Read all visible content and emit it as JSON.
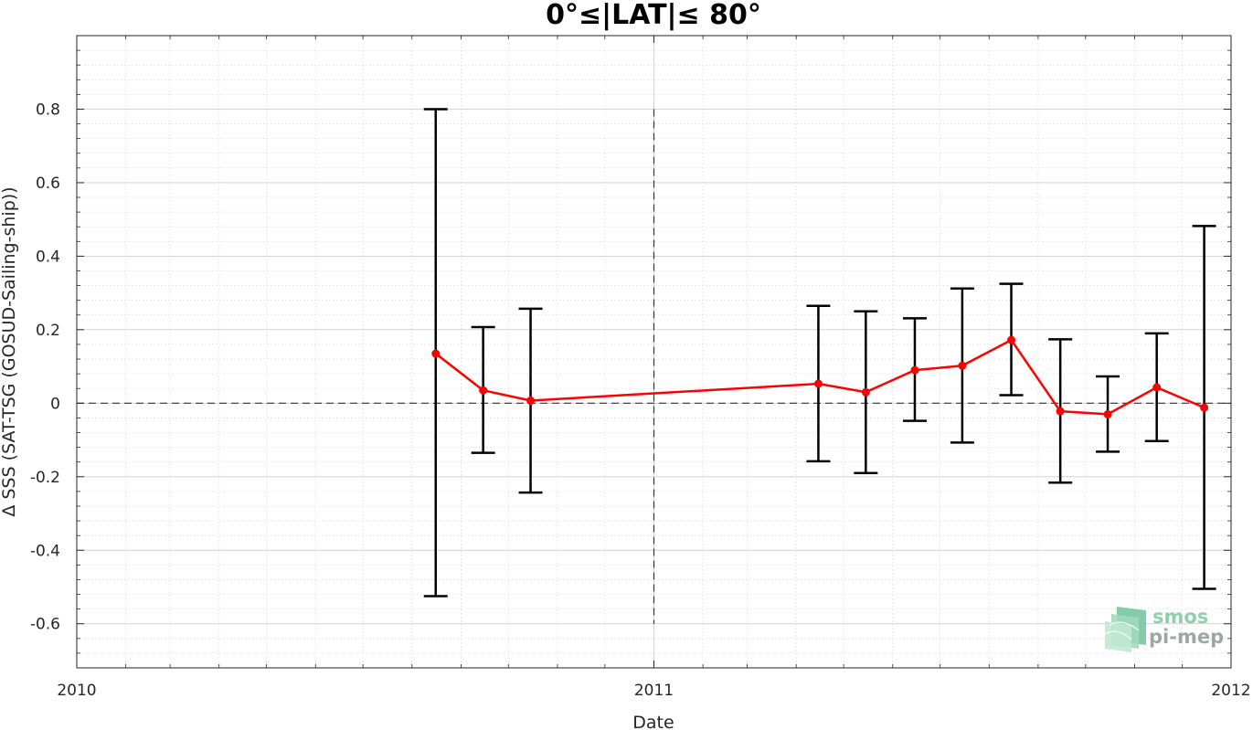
{
  "chart_data": {
    "type": "line",
    "title": "0°≤|LAT|≤ 80°",
    "xlabel": "Date",
    "ylabel": "Δ SSS (SAT-TSG (GOSUD-Sailing-ship))",
    "xlim": [
      "2010-01-01",
      "2012-01-01"
    ],
    "ylim": [
      -0.72,
      1.0
    ],
    "x_tick_labels": [
      "2010",
      "2011",
      "2012"
    ],
    "y_ticks": [
      -0.6,
      -0.4,
      -0.2,
      0,
      0.2,
      0.4,
      0.6,
      0.8
    ],
    "y_tick_labels": [
      "-0.6",
      "-0.4",
      "-0.2",
      "0",
      "0.2",
      "0.4",
      "0.6",
      "0.8"
    ],
    "grid": true,
    "reference_line_y": 0,
    "reference_line_x": "2011-01-01",
    "series": [
      {
        "color": "#ff0000",
        "points": [
          {
            "date": "2010-08-16",
            "y": 0.135,
            "low": -0.525,
            "high": 0.8
          },
          {
            "date": "2010-09-15",
            "y": 0.035,
            "low": -0.135,
            "high": 0.207
          },
          {
            "date": "2010-10-15",
            "y": 0.007,
            "low": -0.243,
            "high": 0.257
          },
          {
            "date": "2011-04-15",
            "y": 0.053,
            "low": -0.158,
            "high": 0.265
          },
          {
            "date": "2011-05-15",
            "y": 0.03,
            "low": -0.19,
            "high": 0.25
          },
          {
            "date": "2011-06-15",
            "y": 0.09,
            "low": -0.048,
            "high": 0.231
          },
          {
            "date": "2011-07-15",
            "y": 0.102,
            "low": -0.107,
            "high": 0.312
          },
          {
            "date": "2011-08-15",
            "y": 0.172,
            "low": 0.022,
            "high": 0.325
          },
          {
            "date": "2011-09-15",
            "y": -0.022,
            "low": -0.216,
            "high": 0.174
          },
          {
            "date": "2011-10-15",
            "y": -0.03,
            "low": -0.132,
            "high": 0.073
          },
          {
            "date": "2011-11-15",
            "y": 0.043,
            "low": -0.103,
            "high": 0.19
          },
          {
            "date": "2011-12-15",
            "y": -0.012,
            "low": -0.505,
            "high": 0.482
          }
        ]
      }
    ]
  },
  "logo": {
    "line1": "smos",
    "line2": "pi-mep"
  }
}
